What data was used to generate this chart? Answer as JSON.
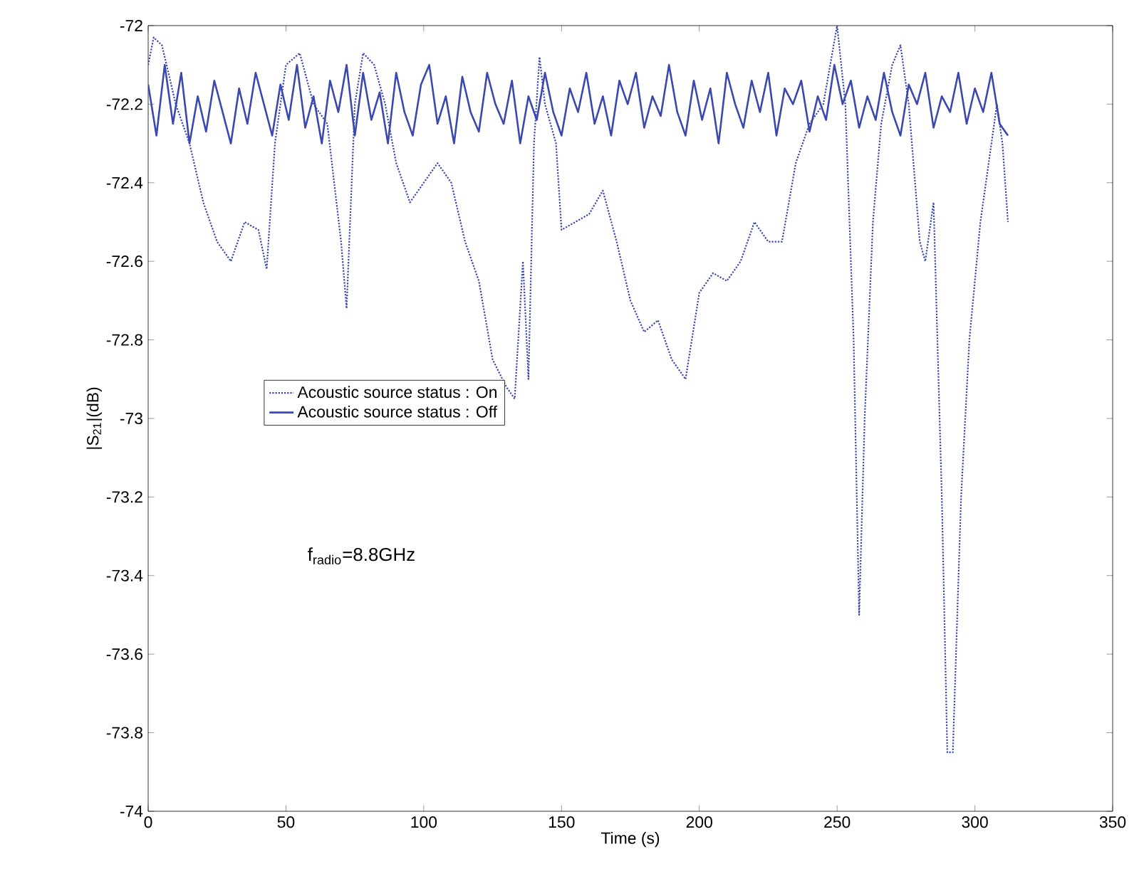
{
  "chart_data": {
    "type": "line",
    "xlabel": "Time (s)",
    "ylabel": "|S$_{21}$|(dB)",
    "xlim": [
      0,
      350
    ],
    "ylim": [
      -74,
      -72
    ],
    "xticks": [
      0,
      50,
      100,
      150,
      200,
      250,
      300,
      350
    ],
    "yticks": [
      -74,
      -73.8,
      -73.6,
      -73.4,
      -73.2,
      -73,
      -72.8,
      -72.6,
      -72.4,
      -72.2,
      -72
    ],
    "grid": false,
    "legend": "left",
    "annotations": [
      "f$_{radio}$=8.8GHz"
    ],
    "series": [
      {
        "name": "Acoustic source status : On",
        "color": "#3a48b0",
        "line_style": "dotted",
        "x": [
          0,
          2,
          5,
          10,
          15,
          20,
          25,
          30,
          35,
          40,
          43,
          46,
          50,
          55,
          60,
          65,
          70,
          72,
          75,
          78,
          82,
          86,
          90,
          95,
          100,
          105,
          110,
          115,
          120,
          125,
          130,
          133,
          136,
          138,
          140,
          142,
          144,
          148,
          150,
          155,
          160,
          165,
          170,
          175,
          180,
          185,
          190,
          195,
          200,
          205,
          210,
          215,
          220,
          225,
          230,
          235,
          240,
          245,
          250,
          253,
          256,
          258,
          260,
          263,
          266,
          270,
          273,
          276,
          280,
          282,
          285,
          288,
          290,
          292,
          295,
          298,
          302,
          306,
          308,
          310,
          312
        ],
        "values": [
          -72.1,
          -72.03,
          -72.05,
          -72.2,
          -72.3,
          -72.45,
          -72.55,
          -72.6,
          -72.5,
          -72.52,
          -72.62,
          -72.3,
          -72.1,
          -72.07,
          -72.2,
          -72.25,
          -72.55,
          -72.72,
          -72.2,
          -72.07,
          -72.1,
          -72.2,
          -72.35,
          -72.45,
          -72.4,
          -72.35,
          -72.4,
          -72.55,
          -72.65,
          -72.85,
          -72.92,
          -72.95,
          -72.6,
          -72.9,
          -72.3,
          -72.08,
          -72.2,
          -72.3,
          -72.52,
          -72.5,
          -72.48,
          -72.42,
          -72.55,
          -72.7,
          -72.78,
          -72.75,
          -72.85,
          -72.9,
          -72.68,
          -72.63,
          -72.65,
          -72.6,
          -72.5,
          -72.55,
          -72.55,
          -72.35,
          -72.25,
          -72.2,
          -72.0,
          -72.2,
          -72.8,
          -73.5,
          -73.0,
          -72.5,
          -72.25,
          -72.1,
          -72.05,
          -72.2,
          -72.55,
          -72.6,
          -72.45,
          -73.2,
          -73.85,
          -73.85,
          -73.2,
          -72.8,
          -72.5,
          -72.3,
          -72.2,
          -72.3,
          -72.5
        ]
      },
      {
        "name": "Acoustic source status : Off",
        "color": "#3a48b0",
        "line_style": "solid",
        "x": [
          0,
          3,
          6,
          9,
          12,
          15,
          18,
          21,
          24,
          27,
          30,
          33,
          36,
          39,
          42,
          45,
          48,
          51,
          54,
          57,
          60,
          63,
          66,
          69,
          72,
          75,
          78,
          81,
          84,
          87,
          90,
          93,
          96,
          99,
          102,
          105,
          108,
          111,
          114,
          117,
          120,
          123,
          126,
          129,
          132,
          135,
          138,
          141,
          144,
          147,
          150,
          153,
          156,
          159,
          162,
          165,
          168,
          171,
          174,
          177,
          180,
          183,
          186,
          189,
          192,
          195,
          198,
          201,
          204,
          207,
          210,
          213,
          216,
          219,
          222,
          225,
          228,
          231,
          234,
          237,
          240,
          243,
          246,
          249,
          252,
          255,
          258,
          261,
          264,
          267,
          270,
          273,
          276,
          279,
          282,
          285,
          288,
          291,
          294,
          297,
          300,
          303,
          306,
          309,
          312
        ],
        "values": [
          -72.15,
          -72.28,
          -72.1,
          -72.25,
          -72.12,
          -72.3,
          -72.18,
          -72.27,
          -72.14,
          -72.22,
          -72.3,
          -72.16,
          -72.25,
          -72.12,
          -72.2,
          -72.28,
          -72.15,
          -72.24,
          -72.1,
          -72.26,
          -72.18,
          -72.3,
          -72.14,
          -72.22,
          -72.1,
          -72.28,
          -72.12,
          -72.24,
          -72.17,
          -72.3,
          -72.12,
          -72.22,
          -72.28,
          -72.15,
          -72.1,
          -72.25,
          -72.18,
          -72.3,
          -72.13,
          -72.22,
          -72.27,
          -72.12,
          -72.2,
          -72.25,
          -72.14,
          -72.3,
          -72.18,
          -72.24,
          -72.12,
          -72.22,
          -72.28,
          -72.16,
          -72.22,
          -72.12,
          -72.25,
          -72.18,
          -72.28,
          -72.14,
          -72.2,
          -72.12,
          -72.26,
          -72.18,
          -72.23,
          -72.1,
          -72.22,
          -72.28,
          -72.14,
          -72.24,
          -72.16,
          -72.3,
          -72.12,
          -72.2,
          -72.26,
          -72.14,
          -72.22,
          -72.12,
          -72.28,
          -72.16,
          -72.2,
          -72.14,
          -72.27,
          -72.18,
          -72.24,
          -72.1,
          -72.2,
          -72.14,
          -72.26,
          -72.18,
          -72.24,
          -72.12,
          -72.22,
          -72.28,
          -72.15,
          -72.2,
          -72.12,
          -72.26,
          -72.18,
          -72.22,
          -72.12,
          -72.25,
          -72.16,
          -72.22,
          -72.12,
          -72.25,
          -72.28
        ]
      }
    ]
  }
}
